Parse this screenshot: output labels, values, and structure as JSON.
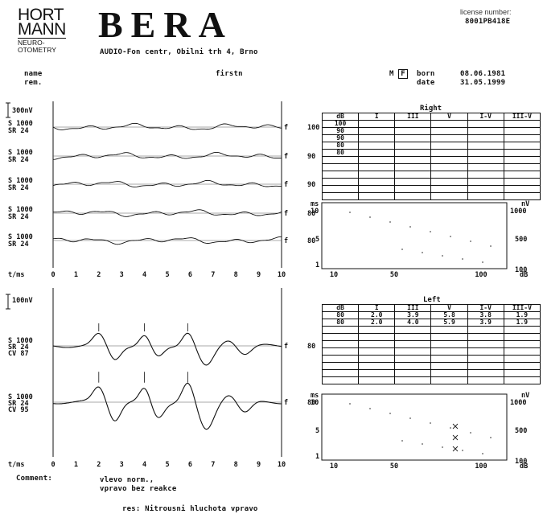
{
  "header": {
    "logo_line1": "HORT",
    "logo_line2": "MANN",
    "logo_sub1": "NEURO-",
    "logo_sub2": "OTOMETRY",
    "title": "BERA",
    "license_label": "license number:",
    "license_number": "8001PB418E",
    "address": "AUDIO-Fon centr, Obilni trh 4, Brno"
  },
  "patient": {
    "name_label": "name",
    "rem_label": "rem.",
    "first_name": "firstn",
    "sex_m": "M",
    "sex_f": "F",
    "born_label": "born",
    "born_value": "08.06.1981",
    "date_label": "date",
    "date_value": "31.05.1999"
  },
  "right_traces": {
    "scale_label": "300nV",
    "axis_label": "t/ms",
    "ticks": [
      "0",
      "1",
      "2",
      "3",
      "4",
      "5",
      "6",
      "7",
      "8",
      "9",
      "10"
    ],
    "traces": [
      {
        "s": "S 1000",
        "sr": "SR  24",
        "level": "100"
      },
      {
        "s": "S 1000",
        "sr": "SR  24",
        "level": "90"
      },
      {
        "s": "S 1000",
        "sr": "SR  24",
        "level": "90"
      },
      {
        "s": "S 1000",
        "sr": "SR  24",
        "level": "80"
      },
      {
        "s": "S 1000",
        "sr": "SR  24",
        "level": "80"
      }
    ]
  },
  "left_traces": {
    "scale_label": "100nV",
    "axis_label": "t/ms",
    "ticks": [
      "0",
      "1",
      "2",
      "3",
      "4",
      "5",
      "6",
      "7",
      "8",
      "9",
      "10"
    ],
    "traces": [
      {
        "s": "S 1000",
        "sr": "SR  24",
        "cv": "CV  87",
        "level": "80"
      },
      {
        "s": "S 1000",
        "sr": "SR  24",
        "cv": "CV  95",
        "level": "80"
      }
    ]
  },
  "right_table": {
    "title": "Right",
    "headers": [
      "dB",
      "I",
      "III",
      "V",
      "I-V",
      "III-V"
    ],
    "rows": [
      [
        "100",
        "",
        "",
        "",
        "",
        ""
      ],
      [
        "90",
        "",
        "",
        "",
        "",
        ""
      ],
      [
        "90",
        "",
        "",
        "",
        "",
        ""
      ],
      [
        "80",
        "",
        "",
        "",
        "",
        ""
      ],
      [
        "80",
        "",
        "",
        "",
        "",
        ""
      ]
    ]
  },
  "left_table": {
    "title": "Left",
    "headers": [
      "dB",
      "I",
      "III",
      "V",
      "I-V",
      "III-V"
    ],
    "rows": [
      [
        "80",
        "2.0",
        "3.9",
        "5.8",
        "3.8",
        "1.9"
      ],
      [
        "80",
        "2.0",
        "4.0",
        "5.9",
        "3.9",
        "1.9"
      ]
    ]
  },
  "right_plot": {
    "y_left_label": "ms",
    "y_left_ticks": [
      "10",
      "5",
      "1"
    ],
    "y_right_label": "nV",
    "y_right_ticks": [
      "1000",
      "500",
      "100"
    ],
    "x_ticks": [
      "10",
      "50",
      "100"
    ],
    "x_unit": "dB"
  },
  "left_plot": {
    "y_left_label": "ms",
    "y_left_ticks": [
      "10",
      "5",
      "1"
    ],
    "y_right_label": "nV",
    "y_right_ticks": [
      "1000",
      "500",
      "100"
    ],
    "x_ticks": [
      "10",
      "50",
      "100"
    ],
    "x_unit": "dB"
  },
  "comment": {
    "label": "Comment:",
    "line1": "vlevo norm.,",
    "line2": "vpravo bez reakce",
    "result": "res: Nitrousni hluchota vpravo"
  }
}
